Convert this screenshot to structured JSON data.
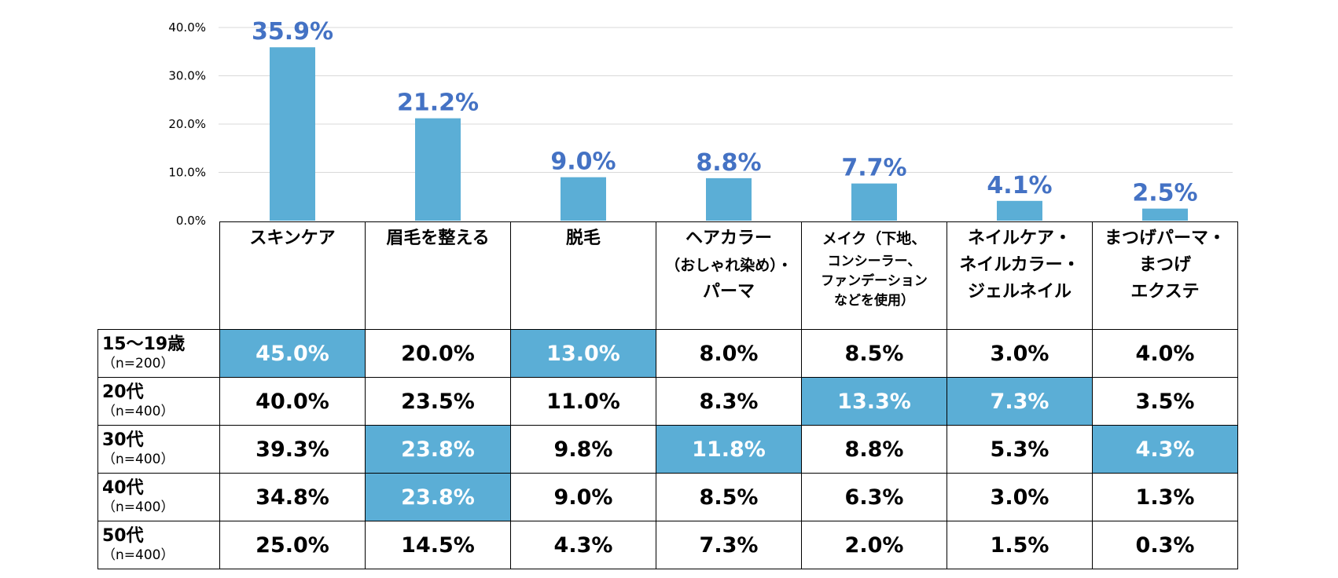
{
  "chart_data": {
    "type": "bar",
    "categories": [
      "スキンケア",
      "眉毛を整える",
      "脱毛",
      "ヘアカラー（おしゃれ染め）・パーマ",
      "メイク（下地、コンシーラー、ファンデーションなどを使用）",
      "ネイルケア・ネイルカラー・ジェルネイル",
      "まつげパーマ・まつげエクステ"
    ],
    "category_lines": [
      [
        {
          "t": "スキンケア",
          "s": "main"
        }
      ],
      [
        {
          "t": "眉毛を整える",
          "s": "main"
        }
      ],
      [
        {
          "t": "脱毛",
          "s": "main"
        }
      ],
      [
        {
          "t": "ヘアカラー",
          "s": "main"
        },
        {
          "t": "（おしゃれ染め）・",
          "s": "sub"
        },
        {
          "t": "パーマ",
          "s": "main"
        }
      ],
      [
        {
          "t": "メイク（下地、",
          "s": "sub"
        },
        {
          "t": "コンシーラー、",
          "s": "tiny"
        },
        {
          "t": "ファンデーション",
          "s": "tiny"
        },
        {
          "t": "などを使用）",
          "s": "tiny"
        }
      ],
      [
        {
          "t": "ネイルケア・",
          "s": "main"
        },
        {
          "t": "ネイルカラー・",
          "s": "main"
        },
        {
          "t": "ジェルネイル",
          "s": "main"
        }
      ],
      [
        {
          "t": "まつげパーマ・",
          "s": "main"
        },
        {
          "t": "まつげ",
          "s": "main"
        },
        {
          "t": "エクステ",
          "s": "main"
        }
      ]
    ],
    "values": [
      35.9,
      21.2,
      9.0,
      8.8,
      7.7,
      4.1,
      2.5
    ],
    "value_labels": [
      "35.9%",
      "21.2%",
      "9.0%",
      "8.8%",
      "7.7%",
      "4.1%",
      "2.5%"
    ],
    "y_ticks": [
      "0.0%",
      "10.0%",
      "20.0%",
      "30.0%",
      "40.0%"
    ],
    "ylim": [
      0,
      40
    ],
    "grid": true,
    "colors": {
      "bar": "#5BAED6",
      "label": "#4472C4",
      "grid": "#D9D9D9",
      "highlight": "#5BAED6"
    },
    "table": {
      "rows": [
        {
          "age": "15～19歳",
          "n": "（n=200）",
          "values": [
            "45.0%",
            "20.0%",
            "13.0%",
            "8.0%",
            "8.5%",
            "3.0%",
            "4.0%"
          ],
          "highlight": [
            true,
            false,
            true,
            false,
            false,
            false,
            false
          ]
        },
        {
          "age": "20代",
          "n": "（n=400）",
          "values": [
            "40.0%",
            "23.5%",
            "11.0%",
            "8.3%",
            "13.3%",
            "7.3%",
            "3.5%"
          ],
          "highlight": [
            false,
            false,
            false,
            false,
            true,
            true,
            false
          ]
        },
        {
          "age": "30代",
          "n": "（n=400）",
          "values": [
            "39.3%",
            "23.8%",
            "9.8%",
            "11.8%",
            "8.8%",
            "5.3%",
            "4.3%"
          ],
          "highlight": [
            false,
            true,
            false,
            true,
            false,
            false,
            true
          ]
        },
        {
          "age": "40代",
          "n": "（n=400）",
          "values": [
            "34.8%",
            "23.8%",
            "9.0%",
            "8.5%",
            "6.3%",
            "3.0%",
            "1.3%"
          ],
          "highlight": [
            false,
            true,
            false,
            false,
            false,
            false,
            false
          ]
        },
        {
          "age": "50代",
          "n": "（n=400）",
          "values": [
            "25.0%",
            "14.5%",
            "4.3%",
            "7.3%",
            "2.0%",
            "1.5%",
            "0.3%"
          ],
          "highlight": [
            false,
            false,
            false,
            false,
            false,
            false,
            false
          ]
        }
      ]
    }
  }
}
